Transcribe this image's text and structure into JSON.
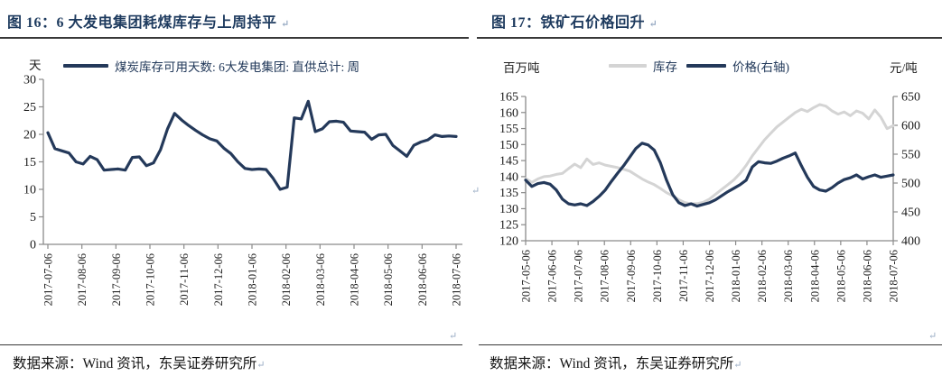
{
  "colors": {
    "navy_line": "#24395a",
    "gray_line": "#d4d4d4",
    "title_navy": "#1d3a5e",
    "axis_gray": "#8a8a8a",
    "text_black": "#141414"
  },
  "marks": {
    "glyph": "↵"
  },
  "left_panel": {
    "title": "图 16：6 大发电集团耗煤库存与上周持平",
    "y_unit": "天",
    "source": "数据来源：Wind 资讯，东吴证券研究所"
  },
  "right_panel": {
    "title": "图 17：铁矿石价格回升",
    "y_unit_left": "百万吨",
    "y_unit_right": "元/吨",
    "source": "数据来源：Wind 资讯，东吴证券研究所"
  },
  "chart_data": [
    {
      "type": "line",
      "title": "6 大发电集团耗煤库存与上周持平",
      "ylabel": "天",
      "ylim": [
        0,
        30
      ],
      "yticks": [
        0,
        5,
        10,
        15,
        20,
        25,
        30
      ],
      "grid": false,
      "legend_position": "top",
      "x_tick_labels": [
        "2017-07-06",
        "2017-08-06",
        "2017-09-06",
        "2017-10-06",
        "2017-11-06",
        "2017-12-06",
        "2018-01-06",
        "2018-02-06",
        "2018-03-06",
        "2018-04-06",
        "2018-05-06",
        "2018-06-06",
        "2018-07-06"
      ],
      "series": [
        {
          "name": "煤炭库存可用天数: 6大发电集团: 直供总计: 周",
          "color": "#24395a",
          "values": [
            20.3,
            17.4,
            17.0,
            16.6,
            15.0,
            14.6,
            16.0,
            15.4,
            13.5,
            13.6,
            13.7,
            13.5,
            15.8,
            15.9,
            14.3,
            14.8,
            17.2,
            21.0,
            23.8,
            22.6,
            21.6,
            20.7,
            19.9,
            19.2,
            18.8,
            17.5,
            16.5,
            15.0,
            13.8,
            13.6,
            13.7,
            13.6,
            12.0,
            10.0,
            10.4,
            23.0,
            22.8,
            26.0,
            20.5,
            21.0,
            22.3,
            22.4,
            22.2,
            20.6,
            20.5,
            20.4,
            19.1,
            19.9,
            20.0,
            18.0,
            17.0,
            16.0,
            18.0,
            18.6,
            19.0,
            19.9,
            19.6,
            19.7,
            19.6
          ]
        }
      ]
    },
    {
      "type": "line",
      "title": "铁矿石价格回升",
      "grid": false,
      "legend_position": "top",
      "left_axis": {
        "label": "百万吨",
        "lim": [
          120,
          165
        ],
        "ticks": [
          120,
          125,
          130,
          135,
          140,
          145,
          150,
          155,
          160,
          165
        ]
      },
      "right_axis": {
        "label": "元/吨",
        "lim": [
          400,
          650
        ],
        "ticks": [
          400,
          450,
          500,
          550,
          600,
          650
        ]
      },
      "x_tick_labels": [
        "2017-05-06",
        "2017-06-06",
        "2017-07-06",
        "2017-08-06",
        "2017-09-06",
        "2017-10-06",
        "2017-11-06",
        "2017-12-06",
        "2018-01-06",
        "2018-02-06",
        "2018-03-06",
        "2018-04-06",
        "2018-05-06",
        "2018-06-06",
        "2018-07-06"
      ],
      "series": [
        {
          "name": "库存",
          "axis": "left",
          "color": "#d4d4d4",
          "values": [
            139.4,
            138.2,
            139.3,
            140.0,
            140.2,
            140.7,
            141.0,
            142.5,
            143.9,
            142.8,
            145.5,
            143.8,
            144.3,
            143.6,
            143.2,
            142.8,
            142.3,
            141.7,
            140.5,
            139.3,
            138.3,
            137.5,
            136.3,
            135.0,
            134.0,
            132.8,
            131.9,
            131.5,
            131.6,
            132.0,
            133.0,
            134.5,
            136.0,
            137.5,
            139.0,
            141.0,
            143.5,
            146.5,
            149.0,
            151.5,
            153.5,
            155.5,
            157.0,
            158.5,
            160.0,
            161.0,
            160.3,
            161.5,
            162.5,
            162.0,
            160.5,
            159.5,
            160.2,
            159.0,
            160.5,
            159.8,
            158.0,
            160.8,
            158.5,
            155.0,
            155.9
          ]
        },
        {
          "name": "价格(右轴)",
          "axis": "right",
          "color": "#24395a",
          "values": [
            505,
            494,
            499,
            501,
            498,
            488,
            472,
            464,
            462,
            464,
            461,
            468,
            477,
            488,
            503,
            517,
            530,
            545,
            560,
            569,
            566,
            557,
            535,
            505,
            480,
            466,
            461,
            464,
            460,
            463,
            466,
            471,
            478,
            485,
            491,
            497,
            505,
            528,
            537,
            535,
            534,
            538,
            543,
            547,
            552,
            530,
            510,
            494,
            488,
            486,
            492,
            500,
            506,
            509,
            514,
            507,
            511,
            514,
            510,
            512,
            514
          ]
        }
      ]
    }
  ]
}
